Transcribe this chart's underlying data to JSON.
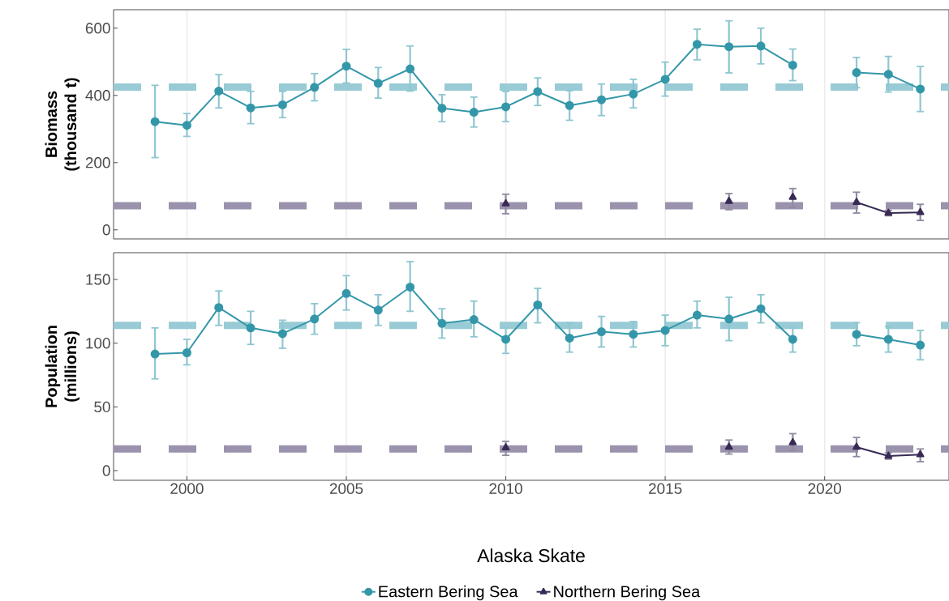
{
  "chart_data": [
    {
      "type": "line",
      "ylabel": "Biomass (thousand t)",
      "x": [
        1999,
        2000,
        2001,
        2002,
        2003,
        2004,
        2005,
        2006,
        2007,
        2008,
        2009,
        2010,
        2011,
        2012,
        2013,
        2014,
        2015,
        2016,
        2017,
        2018,
        2019,
        2020,
        2021,
        2022,
        2023
      ],
      "xlim": [
        1997.7,
        2023.9
      ],
      "xticks": [
        2000,
        2005,
        2010,
        2015,
        2020
      ],
      "ylim": [
        -27,
        655
      ],
      "yticks": [
        0,
        200,
        400,
        600
      ],
      "tick_labels": "y",
      "grid": "x",
      "legend": false,
      "series": [
        {
          "color": "#3497a9",
          "marker": "circle",
          "line_style": "solid",
          "values": [
            322,
            311,
            413,
            363,
            372,
            424,
            487,
            436,
            479,
            362,
            350,
            366,
            411,
            370,
            387,
            404,
            448,
            552,
            545,
            547,
            490,
            null,
            468,
            463,
            419
          ],
          "errors": [
            [
              215,
              430
            ],
            [
              278,
              346
            ],
            [
              363,
              462
            ],
            [
              316,
              412
            ],
            [
              334,
              412
            ],
            [
              384,
              465
            ],
            [
              437,
              537
            ],
            [
              392,
              483
            ],
            [
              413,
              547
            ],
            [
              322,
              402
            ],
            [
              306,
              395
            ],
            [
              322,
              412
            ],
            [
              370,
              452
            ],
            [
              326,
              414
            ],
            [
              340,
              434
            ],
            [
              363,
              448
            ],
            [
              398,
              499
            ],
            [
              506,
              597
            ],
            [
              467,
              622
            ],
            [
              494,
              600
            ],
            [
              444,
              538
            ],
            null,
            [
              423,
              513
            ],
            [
              410,
              516
            ],
            [
              352,
              486
            ]
          ]
        },
        {
          "color": "#382a54",
          "marker": "triangle",
          "line_style": "solid",
          "values": [
            null,
            null,
            null,
            null,
            null,
            null,
            null,
            null,
            null,
            null,
            null,
            78,
            null,
            null,
            null,
            null,
            null,
            null,
            85,
            null,
            97,
            null,
            82,
            50,
            52
          ],
          "errors": [
            null,
            null,
            null,
            null,
            null,
            null,
            null,
            null,
            null,
            null,
            null,
            [
              48,
              106
            ],
            null,
            null,
            null,
            null,
            null,
            null,
            [
              60,
              108
            ],
            null,
            [
              67,
              123
            ],
            null,
            [
              50,
              112
            ],
            [
              42,
              58
            ],
            [
              28,
              76
            ]
          ]
        }
      ],
      "ref_lines": [
        {
          "axis": "y",
          "value": 425,
          "color": "#98cbd5",
          "line_style": "dashed"
        },
        {
          "axis": "y",
          "value": 72,
          "color": "#9b93ad",
          "line_style": "dashed"
        }
      ]
    },
    {
      "type": "line",
      "ylabel": "Population (millions)",
      "xlabel": "Alaska Skate",
      "x": [
        1999,
        2000,
        2001,
        2002,
        2003,
        2004,
        2005,
        2006,
        2007,
        2008,
        2009,
        2010,
        2011,
        2012,
        2013,
        2014,
        2015,
        2016,
        2017,
        2018,
        2019,
        2020,
        2021,
        2022,
        2023
      ],
      "xlim": [
        1997.7,
        2023.9
      ],
      "xticks": [
        2000,
        2005,
        2010,
        2015,
        2020
      ],
      "ylim": [
        -7.6,
        171
      ],
      "yticks": [
        0,
        50,
        100,
        150
      ],
      "grid": "x",
      "legend": "bottom",
      "series": [
        {
          "name": "Eastern Bering Sea",
          "color": "#3497a9",
          "marker": "circle",
          "line_style": "solid",
          "values": [
            91.5,
            92.5,
            128,
            112,
            107.5,
            119,
            139,
            126,
            144,
            115.5,
            118.5,
            103,
            130,
            104,
            109,
            107,
            110,
            122,
            119,
            127,
            103,
            null,
            107,
            103,
            98.5
          ],
          "errors": [
            [
              72,
              112
            ],
            [
              83,
              103
            ],
            [
              114,
              141
            ],
            [
              99,
              125
            ],
            [
              96,
              118
            ],
            [
              107,
              131
            ],
            [
              126,
              153
            ],
            [
              114,
              138
            ],
            [
              125,
              164
            ],
            [
              104,
              127
            ],
            [
              105,
              133
            ],
            [
              92,
              112
            ],
            [
              116,
              143
            ],
            [
              93,
              116
            ],
            [
              97,
              121
            ],
            [
              97,
              117
            ],
            [
              98,
              122
            ],
            [
              112,
              133
            ],
            [
              102,
              136
            ],
            [
              116,
              138
            ],
            [
              93,
              112
            ],
            null,
            [
              98,
              116
            ],
            [
              93,
              113
            ],
            [
              87,
              110
            ]
          ]
        },
        {
          "name": "Northern Bering Sea",
          "color": "#382a54",
          "marker": "triangle",
          "line_style": "solid",
          "values": [
            null,
            null,
            null,
            null,
            null,
            null,
            null,
            null,
            null,
            null,
            null,
            18,
            null,
            null,
            null,
            null,
            null,
            null,
            18.5,
            null,
            22,
            null,
            18.5,
            11.5,
            12.5
          ],
          "errors": [
            null,
            null,
            null,
            null,
            null,
            null,
            null,
            null,
            null,
            null,
            null,
            [
              12,
              23
            ],
            null,
            null,
            null,
            null,
            null,
            null,
            [
              13,
              24
            ],
            null,
            [
              16,
              29
            ],
            null,
            [
              11,
              26
            ],
            [
              9,
              14
            ],
            [
              7,
              17
            ]
          ]
        }
      ],
      "ref_lines": [
        {
          "axis": "y",
          "value": 114,
          "color": "#98cbd5",
          "line_style": "dashed"
        },
        {
          "axis": "y",
          "value": 17,
          "color": "#9b93ad",
          "line_style": "dashed"
        }
      ]
    }
  ]
}
